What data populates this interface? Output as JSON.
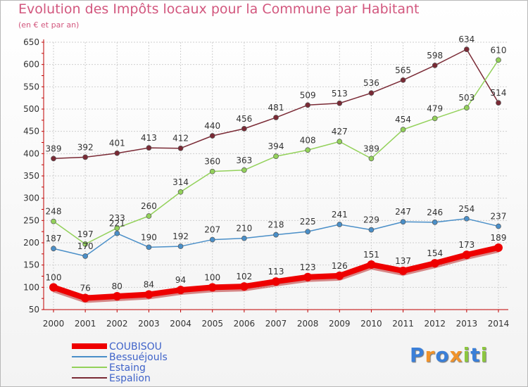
{
  "header": {
    "title": "Evolution des Impôts locaux pour la Commune par Habitant",
    "subtitle": "(en € et par an)"
  },
  "logo": {
    "text": "Proxiti",
    "letters": [
      "P",
      "r",
      "o",
      "x",
      "i",
      "t",
      "i"
    ],
    "colors": [
      "#3a7fd8",
      "#f0932b",
      "#3a7fd8",
      "#f0932b",
      "#8cc63f",
      "#3a7fd8",
      "#8cc63f"
    ]
  },
  "chart_data": {
    "type": "line",
    "x": [
      "2000",
      "2001",
      "2002",
      "2003",
      "2004",
      "2005",
      "2006",
      "2007",
      "2008",
      "2009",
      "2010",
      "2011",
      "2012",
      "2013",
      "2014"
    ],
    "ylim": [
      50,
      650
    ],
    "yticks": [
      50,
      100,
      150,
      200,
      250,
      300,
      350,
      400,
      450,
      500,
      550,
      600,
      650
    ],
    "grid": true,
    "legend_position": "bottom-left",
    "series": [
      {
        "name": "Espalion",
        "color": "#7a2a35",
        "values": [
          389,
          392,
          401,
          413,
          412,
          440,
          456,
          481,
          509,
          513,
          536,
          565,
          598,
          634,
          514
        ]
      },
      {
        "name": "Estaing",
        "color": "#93d15a",
        "values": [
          248,
          197,
          233,
          260,
          314,
          360,
          363,
          394,
          408,
          427,
          389,
          454,
          479,
          503,
          610
        ]
      },
      {
        "name": "Bessuéjouls",
        "color": "#4a8fc8",
        "values": [
          187,
          170,
          221,
          190,
          192,
          207,
          210,
          218,
          225,
          241,
          229,
          247,
          246,
          254,
          237
        ]
      },
      {
        "name": "COUBISOU",
        "color": "#ee0000",
        "values": [
          100,
          76,
          80,
          84,
          94,
          100,
          102,
          113,
          123,
          126,
          151,
          137,
          154,
          173,
          189
        ]
      }
    ],
    "legend_order": [
      "COUBISOU",
      "Bessuéjouls",
      "Estaing",
      "Espalion"
    ]
  }
}
